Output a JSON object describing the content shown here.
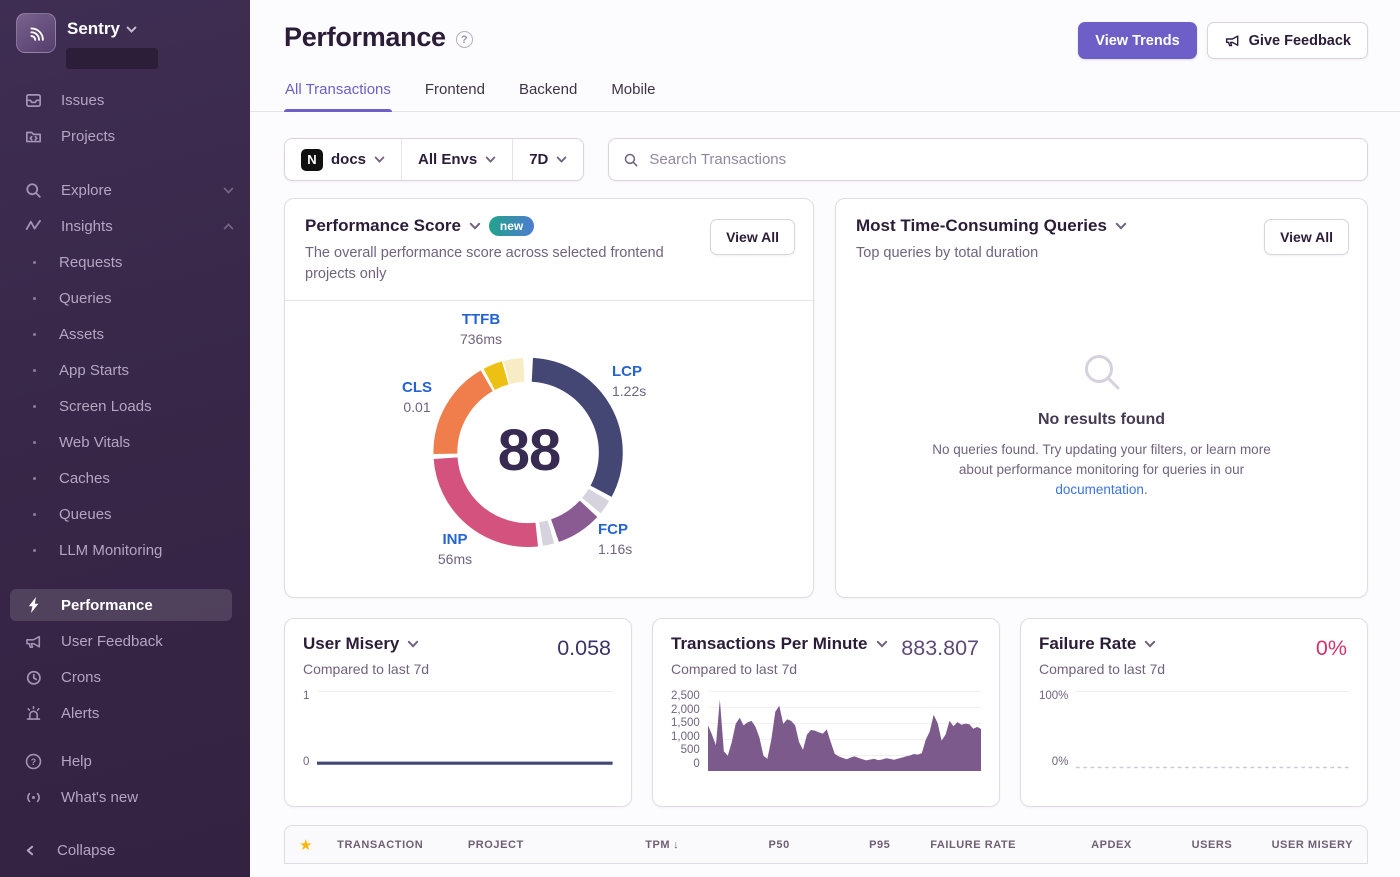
{
  "sidebar": {
    "brand": "Sentry",
    "items_top": [
      {
        "label": "Issues"
      },
      {
        "label": "Projects"
      }
    ],
    "explore": {
      "label": "Explore"
    },
    "insights": {
      "label": "Insights",
      "children": [
        "Requests",
        "Queries",
        "Assets",
        "App Starts",
        "Screen Loads",
        "Web Vitals",
        "Caches",
        "Queues",
        "LLM Monitoring"
      ]
    },
    "items_mid": [
      "Performance",
      "User Feedback",
      "Crons",
      "Alerts"
    ],
    "items_bottom": [
      "Help",
      "What's new"
    ],
    "collapse_label": "Collapse"
  },
  "header": {
    "title": "Performance",
    "actions": {
      "view_trends": "View Trends",
      "give_feedback": "Give Feedback"
    },
    "tabs": [
      "All Transactions",
      "Frontend",
      "Backend",
      "Mobile"
    ],
    "active_tab": "All Transactions"
  },
  "filters": {
    "project": "docs",
    "project_platform_letter": "N",
    "environment": "All Envs",
    "date_range": "7D",
    "search_placeholder": "Search Transactions"
  },
  "score_card": {
    "title": "Performance Score",
    "badge": "new",
    "description": "The overall performance score across selected frontend projects only",
    "view_all": "View All"
  },
  "queries_card": {
    "title": "Most Time-Consuming Queries",
    "description": "Top queries by total duration",
    "view_all": "View All",
    "empty_title": "No results found",
    "empty_text": "No queries found. Try updating your filters, or learn more about performance monitoring for queries in our ",
    "empty_link": "documentation",
    "empty_suffix": "."
  },
  "metric_cards": {
    "user_misery": {
      "title": "User Misery",
      "value": "0.058",
      "subtitle": "Compared to last 7d"
    },
    "tpm": {
      "title": "Transactions Per Minute",
      "value": "883.807",
      "subtitle": "Compared to last 7d"
    },
    "failure_rate": {
      "title": "Failure Rate",
      "value": "0%",
      "subtitle": "Compared to last 7d"
    }
  },
  "table": {
    "columns": [
      "TRANSACTION",
      "PROJECT",
      "TPM",
      "P50",
      "P95",
      "FAILURE RATE",
      "APDEX",
      "USERS",
      "USER MISERY"
    ],
    "sorted_column": "TPM",
    "sort_arrow": "↓",
    "star_icon": "★"
  },
  "colors": {
    "accent_purple": "#6C5FC7",
    "sidebar_bg": "#382748",
    "link_blue": "#3C74DD",
    "vital_label_blue": "#2463D1",
    "failure_pink": "#D4326E",
    "star_yellow": "#FBB80A"
  },
  "chart_data": [
    {
      "type": "donut",
      "title": "Performance Score",
      "center_value": "88",
      "vitals": [
        {
          "key": "ttfb",
          "label": "TTFB",
          "value": "736ms"
        },
        {
          "key": "lcp",
          "label": "LCP",
          "value": "1.22s"
        },
        {
          "key": "cls",
          "label": "CLS",
          "value": "0.01"
        },
        {
          "key": "inp",
          "label": "INP",
          "value": "56ms"
        },
        {
          "key": "fcp",
          "label": "FCP",
          "value": "1.16s"
        }
      ],
      "segments": [
        {
          "name": "lcp",
          "color": "#444674",
          "start": 3,
          "end": 118
        },
        {
          "name": "gap-1",
          "color": "#D6D3DE",
          "start": 121,
          "end": 130
        },
        {
          "name": "fcp",
          "color": "#8A5B92",
          "start": 133,
          "end": 161
        },
        {
          "name": "gap-2",
          "color": "#D6D3DE",
          "start": 164,
          "end": 171
        },
        {
          "name": "inp",
          "color": "#D4537E",
          "start": 174,
          "end": 266
        },
        {
          "name": "cls",
          "color": "#F07E4D",
          "start": 269,
          "end": 330
        },
        {
          "name": "ttfb",
          "color": "#EDC113",
          "start": 332,
          "end": 344
        },
        {
          "name": "ttfb-rest",
          "color": "#F7ECC3",
          "start": 345,
          "end": 357
        }
      ]
    },
    {
      "type": "line",
      "title": "User Misery",
      "current": "0.058",
      "y_ticks": [
        "1",
        "0"
      ],
      "ylim": [
        0,
        1
      ],
      "color": "#444674",
      "stroke_width": 3,
      "values": [
        0.058,
        0.058,
        0.058,
        0.058,
        0.058,
        0.058,
        0.058,
        0.058,
        0.058,
        0.058,
        0.058,
        0.058
      ]
    },
    {
      "type": "area",
      "title": "Transactions Per Minute",
      "current": "883.807",
      "y_ticks": [
        "2,500",
        "2,000",
        "1,500",
        "1,000",
        "500",
        "0"
      ],
      "ylim": [
        0,
        2500
      ],
      "color": "#7D5A8C",
      "values": [
        1450,
        1150,
        800,
        2300,
        600,
        450,
        900,
        1500,
        1700,
        1450,
        1550,
        1600,
        1400,
        1050,
        450,
        350,
        1000,
        1900,
        2100,
        1500,
        1650,
        1600,
        1450,
        900,
        650,
        1150,
        1300,
        1280,
        1220,
        1180,
        1320,
        900,
        520,
        430,
        380,
        340,
        390,
        430,
        380,
        340,
        300,
        330,
        350,
        310,
        330,
        370,
        350,
        320,
        360,
        390,
        430,
        460,
        510,
        490,
        540,
        980,
        1250,
        1800,
        1520,
        950,
        1150,
        1600,
        1420,
        1560,
        1470,
        1510,
        1490,
        1340,
        1400,
        1330
      ]
    },
    {
      "type": "line",
      "title": "Failure Rate",
      "current": "0%",
      "y_ticks": [
        "100%",
        "0%"
      ],
      "ylim": [
        0,
        100
      ],
      "color": "#CDC8D4",
      "stroke_width": 1.5,
      "dashed": true,
      "values": [
        0,
        0,
        0,
        0,
        0,
        0,
        0,
        0
      ]
    }
  ]
}
